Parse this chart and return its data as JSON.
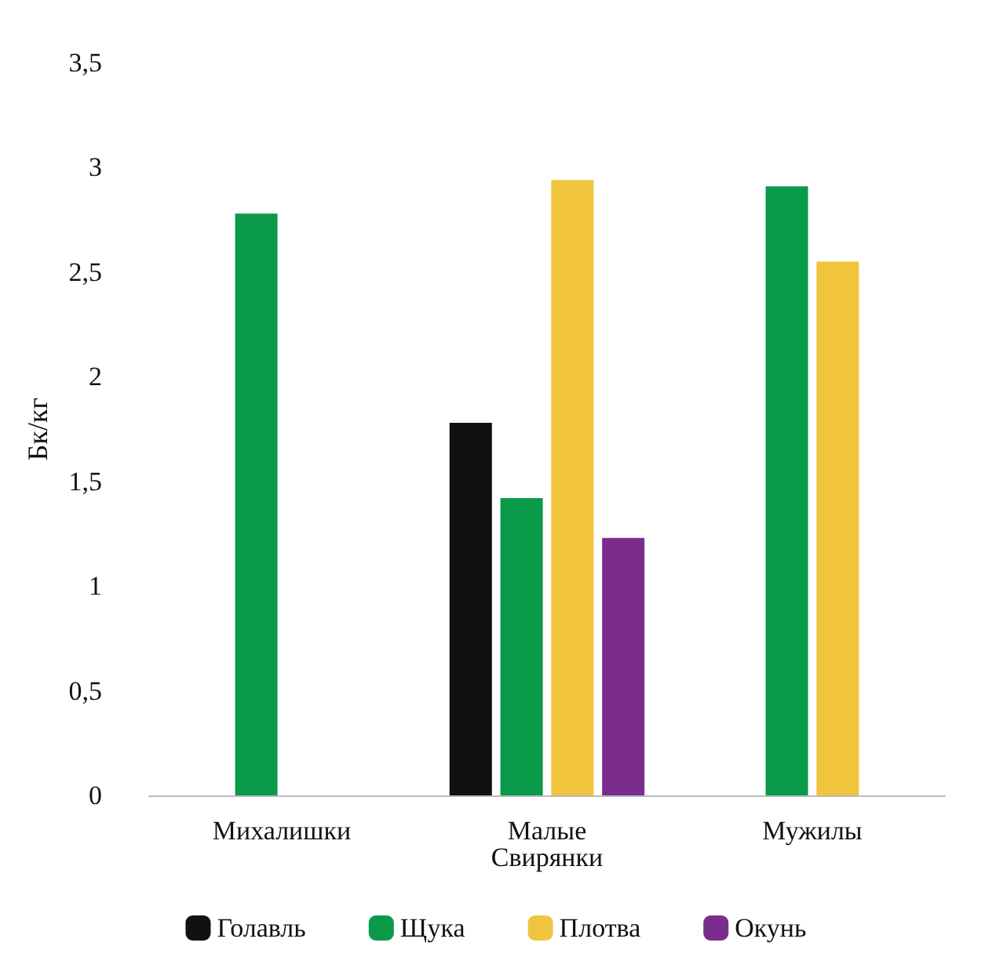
{
  "chart_data": {
    "type": "bar",
    "ylabel": "Бк/кг",
    "categories": [
      "Михалишки",
      "Малые Свирянки",
      "Мужилы"
    ],
    "series": [
      {
        "name": "Голавль",
        "color": "#111111",
        "values": [
          null,
          1.78,
          null
        ]
      },
      {
        "name": "Щука",
        "color": "#0a9a4a",
        "values": [
          2.78,
          1.42,
          2.91
        ]
      },
      {
        "name": "Плотва",
        "color": "#f0c43c",
        "values": [
          null,
          2.94,
          2.55
        ]
      },
      {
        "name": "Окунь",
        "color": "#7b2d8e",
        "values": [
          null,
          1.23,
          null
        ]
      }
    ],
    "ylim": [
      0,
      3.5
    ],
    "yticks": [
      0,
      {
        "value": 0.5,
        "label": "0,5"
      },
      1,
      {
        "value": 1.5,
        "label": "1,5"
      },
      2,
      {
        "value": 2.5,
        "label": "2,5"
      },
      3,
      {
        "value": 3.5,
        "label": "3,5"
      }
    ],
    "grid": false,
    "legend": "bottom"
  }
}
